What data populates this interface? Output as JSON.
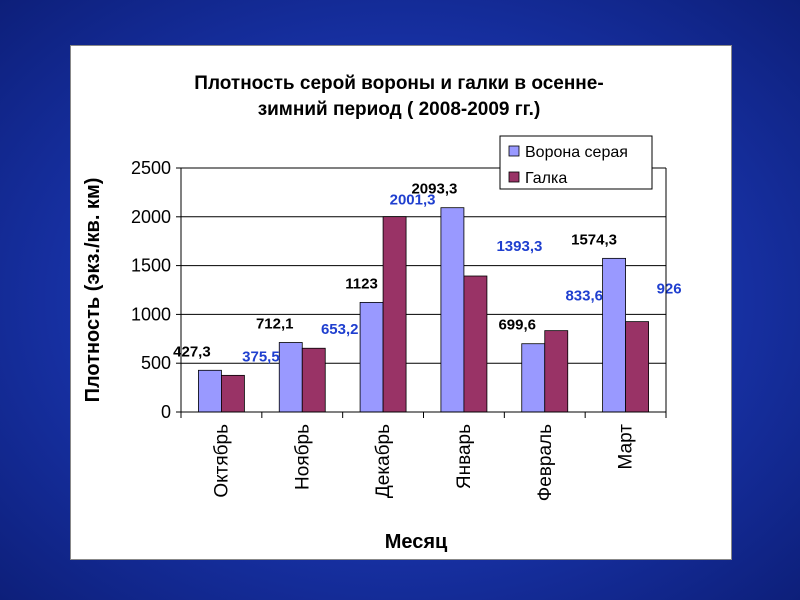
{
  "chart_data": {
    "type": "bar",
    "title_lines": [
      "Плотность серой вороны и галки в  осенне-",
      "зимний период ( 2008-2009 гг.)"
    ],
    "xlabel": "Месяц",
    "ylabel": "Плотность (экз./кв. км)",
    "categories": [
      "Октябрь",
      "Ноябрь",
      "Декабрь",
      "Январь",
      "Февраль",
      "Март"
    ],
    "ylim": [
      0,
      2500
    ],
    "yticks": [
      "0",
      "500",
      "1000",
      "1500",
      "2000",
      "2500"
    ],
    "grid": true,
    "legend_position": "top-right",
    "series": [
      {
        "name": "Ворона серая",
        "color": "#9999ff",
        "label_color": "#000000",
        "values": [
          427.3,
          712.1,
          1123,
          2093.3,
          699.6,
          1574.3
        ],
        "labels": [
          "427,3",
          "712,1",
          "1123",
          "2093,3",
          "699,6",
          "1574,3"
        ]
      },
      {
        "name": "Галка",
        "color": "#993366",
        "label_color": "#1f3fcf",
        "values": [
          375.5,
          653.2,
          2001.3,
          1393.3,
          833.6,
          926
        ],
        "labels": [
          "375,5",
          "653,2",
          "2001,3",
          "1393,3",
          "833,6",
          "926"
        ]
      }
    ]
  }
}
